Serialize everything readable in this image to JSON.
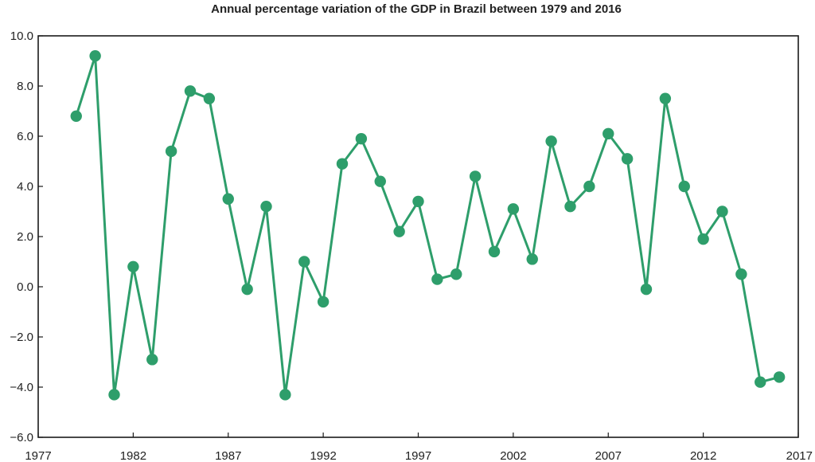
{
  "chart_data": {
    "type": "line",
    "title": "Annual percentage variation of the GDP in Brazil between 1979 and 2016",
    "xlabel": "",
    "ylabel": "",
    "xlim": [
      1977,
      2017
    ],
    "ylim": [
      -6.0,
      10.0
    ],
    "x_ticks": [
      "1977",
      "1982",
      "1987",
      "1992",
      "1997",
      "2002",
      "2007",
      "2012",
      "2017"
    ],
    "y_ticks": [
      "10.0",
      "8.0",
      "6.0",
      "4.0",
      "2.0",
      "0.0",
      "−2.0",
      "−4.0",
      "−6.0"
    ],
    "grid": false,
    "legend": "none",
    "color": "#2e9e6b",
    "series": [
      {
        "x": [
          1979,
          1980,
          1981,
          1982,
          1983,
          1984,
          1985,
          1986,
          1987,
          1988,
          1989,
          1990,
          1991,
          1992,
          1993,
          1994,
          1995,
          1996,
          1997,
          1998,
          1999,
          2000,
          2001,
          2002,
          2003,
          2004,
          2005,
          2006,
          2007,
          2008,
          2009,
          2010,
          2011,
          2012,
          2013,
          2014,
          2015,
          2016
        ],
        "values": [
          6.8,
          9.2,
          -4.3,
          0.8,
          -2.9,
          5.4,
          7.8,
          7.5,
          3.5,
          -0.1,
          3.2,
          -4.3,
          1.0,
          -0.6,
          4.9,
          5.9,
          4.2,
          2.2,
          3.4,
          0.3,
          0.5,
          4.4,
          1.4,
          3.1,
          1.1,
          5.8,
          3.2,
          4.0,
          6.1,
          5.1,
          -0.1,
          7.5,
          4.0,
          1.9,
          3.0,
          0.5,
          -3.8,
          -3.6
        ]
      }
    ]
  }
}
